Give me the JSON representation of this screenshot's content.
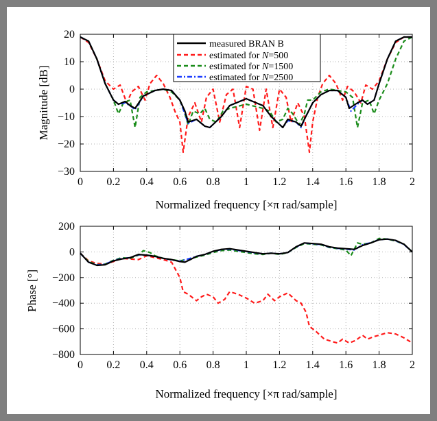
{
  "chart_data": [
    {
      "type": "line",
      "xlabel": "Normalized frequency  [×π rad/sample]",
      "ylabel": "Magnitude [dB]",
      "xlim": [
        0,
        2
      ],
      "ylim": [
        -30,
        20
      ],
      "xticks": [
        "0",
        "0.2",
        "0.4",
        "0.6",
        "0.8",
        "1",
        "1.2",
        "1.4",
        "1.6",
        "1.8",
        "2"
      ],
      "yticks": [
        "−30",
        "−20",
        "−10",
        "0",
        "10",
        "20"
      ],
      "grid": true,
      "legend_position": "top-center",
      "series": [
        {
          "name": "measured  BRAN B",
          "x": [
            0,
            0.05,
            0.1,
            0.15,
            0.2,
            0.23,
            0.27,
            0.3,
            0.33,
            0.38,
            0.45,
            0.5,
            0.55,
            0.6,
            0.63,
            0.65,
            0.7,
            0.75,
            0.78,
            0.85,
            0.9,
            1.0,
            1.1,
            1.15,
            1.22,
            1.25,
            1.3,
            1.33,
            1.35,
            1.4,
            1.45,
            1.5,
            1.55,
            1.6,
            1.62,
            1.67,
            1.7,
            1.73,
            1.77,
            1.8,
            1.85,
            1.9,
            1.95,
            2.0
          ],
          "y": [
            19,
            17.5,
            11,
            2,
            -4,
            -5.5,
            -4.5,
            -6,
            -7,
            -2.5,
            -0.5,
            0,
            -0.5,
            -4,
            -8,
            -12,
            -11,
            -13.5,
            -14,
            -10,
            -6,
            -3.5,
            -6,
            -10,
            -14,
            -11,
            -12,
            -13.5,
            -11,
            -5,
            -2,
            -0.5,
            -0.5,
            -3,
            -7,
            -5,
            -4,
            -5.5,
            -4,
            2,
            11,
            17.5,
            19,
            19
          ]
        },
        {
          "name": "estimated for N=500",
          "x": [
            0,
            0.05,
            0.1,
            0.15,
            0.2,
            0.24,
            0.28,
            0.31,
            0.35,
            0.39,
            0.42,
            0.46,
            0.5,
            0.54,
            0.57,
            0.6,
            0.62,
            0.65,
            0.69,
            0.73,
            0.76,
            0.8,
            0.84,
            0.88,
            0.92,
            0.96,
            1.0,
            1.04,
            1.08,
            1.12,
            1.16,
            1.2,
            1.24,
            1.27,
            1.31,
            1.35,
            1.38,
            1.4,
            1.43,
            1.46,
            1.5,
            1.54,
            1.58,
            1.61,
            1.65,
            1.69,
            1.72,
            1.76,
            1.8,
            1.85,
            1.9,
            1.95,
            2.0
          ],
          "y": [
            19,
            17,
            11,
            3,
            0,
            1.5,
            -5,
            -1,
            1,
            -4,
            2,
            5,
            2,
            -3,
            -8,
            -12,
            -23,
            -10,
            -5,
            -12,
            -3,
            0,
            -12,
            -2,
            0,
            -14,
            1,
            0,
            -15,
            0,
            -14,
            0,
            -3,
            -12,
            -5,
            -10,
            -23,
            -12,
            -3,
            2,
            5,
            2,
            -4,
            1,
            -1,
            -5,
            1.5,
            0,
            3,
            11,
            17,
            19,
            19
          ]
        },
        {
          "name": "estimated for N=1500",
          "x": [
            0,
            0.05,
            0.1,
            0.15,
            0.2,
            0.23,
            0.26,
            0.3,
            0.33,
            0.36,
            0.4,
            0.45,
            0.5,
            0.55,
            0.6,
            0.63,
            0.65,
            0.68,
            0.72,
            0.75,
            0.78,
            0.82,
            0.86,
            0.9,
            1.0,
            1.1,
            1.14,
            1.18,
            1.22,
            1.25,
            1.28,
            1.32,
            1.35,
            1.37,
            1.4,
            1.45,
            1.5,
            1.55,
            1.6,
            1.64,
            1.67,
            1.7,
            1.74,
            1.77,
            1.8,
            1.85,
            1.9,
            1.95,
            2.0
          ],
          "y": [
            19,
            17.5,
            11,
            2,
            -4,
            -9,
            -5,
            -4,
            -14,
            -3,
            -1,
            -0.5,
            0,
            -1,
            -4,
            -9,
            -13,
            -8,
            -9,
            -7,
            -11,
            -12,
            -8,
            -7,
            -5.5,
            -7,
            -8,
            -12,
            -11,
            -7,
            -9,
            -13,
            -9,
            -4,
            -4,
            -1,
            0,
            -0.5,
            -1,
            -3,
            -14,
            -5,
            -4,
            -9,
            -4,
            2,
            11,
            17.5,
            19
          ]
        },
        {
          "name": "estimated for N=2500",
          "x": [
            0,
            0.05,
            0.1,
            0.15,
            0.2,
            0.23,
            0.27,
            0.3,
            0.33,
            0.38,
            0.45,
            0.5,
            0.55,
            0.6,
            0.63,
            0.65,
            0.7,
            0.75,
            0.78,
            0.85,
            0.9,
            1.0,
            1.1,
            1.15,
            1.22,
            1.25,
            1.3,
            1.33,
            1.35,
            1.4,
            1.45,
            1.5,
            1.55,
            1.6,
            1.63,
            1.67,
            1.7,
            1.73,
            1.77,
            1.8,
            1.85,
            1.9,
            1.95,
            2.0
          ],
          "y": [
            19,
            17.5,
            11,
            2,
            -4,
            -5.5,
            -5,
            -6,
            -7.5,
            -2.5,
            -0.5,
            0,
            -0.5,
            -4,
            -9,
            -12.5,
            -11,
            -13.5,
            -14,
            -10,
            -6,
            -3.5,
            -6,
            -10,
            -14,
            -11.5,
            -12,
            -14,
            -11,
            -5,
            -2,
            -0.5,
            -0.5,
            -3,
            -8,
            -5.5,
            -4,
            -5.5,
            -4,
            2,
            11,
            17.5,
            19,
            19
          ]
        }
      ]
    },
    {
      "type": "line",
      "xlabel": "Normalized frequency  [×π rad/sample]",
      "ylabel": "Phase [°]",
      "xlim": [
        0,
        2
      ],
      "ylim": [
        -800,
        200
      ],
      "xticks": [
        "0",
        "0.2",
        "0.4",
        "0.6",
        "0.8",
        "1",
        "1.2",
        "1.4",
        "1.6",
        "1.8",
        "2"
      ],
      "yticks": [
        "−800",
        "−600",
        "−400",
        "−200",
        "0",
        "200"
      ],
      "grid": true,
      "series": [
        {
          "name": "measured  BRAN B",
          "x": [
            0,
            0.05,
            0.1,
            0.15,
            0.2,
            0.25,
            0.3,
            0.35,
            0.4,
            0.45,
            0.5,
            0.55,
            0.6,
            0.63,
            0.67,
            0.7,
            0.75,
            0.8,
            0.85,
            0.9,
            0.95,
            1.0,
            1.05,
            1.1,
            1.15,
            1.2,
            1.25,
            1.3,
            1.35,
            1.4,
            1.45,
            1.5,
            1.55,
            1.6,
            1.65,
            1.7,
            1.75,
            1.8,
            1.85,
            1.9,
            1.95,
            2.0
          ],
          "y": [
            -10,
            -80,
            -105,
            -100,
            -70,
            -55,
            -45,
            -20,
            -25,
            -35,
            -50,
            -60,
            -75,
            -80,
            -55,
            -35,
            -20,
            5,
            20,
            25,
            15,
            5,
            -5,
            -15,
            -10,
            -15,
            -5,
            40,
            70,
            65,
            60,
            40,
            30,
            25,
            20,
            50,
            70,
            95,
            100,
            90,
            60,
            0
          ]
        },
        {
          "name": "estimated for N=500",
          "x": [
            0,
            0.05,
            0.1,
            0.15,
            0.2,
            0.25,
            0.3,
            0.35,
            0.4,
            0.45,
            0.5,
            0.55,
            0.6,
            0.62,
            0.65,
            0.7,
            0.73,
            0.76,
            0.8,
            0.83,
            0.87,
            0.9,
            0.95,
            1.0,
            1.05,
            1.1,
            1.13,
            1.17,
            1.2,
            1.25,
            1.3,
            1.33,
            1.36,
            1.38,
            1.42,
            1.47,
            1.52,
            1.55,
            1.58,
            1.62,
            1.66,
            1.7,
            1.73,
            1.77,
            1.8,
            1.85,
            1.9,
            1.95,
            2.0
          ],
          "y": [
            -10,
            -70,
            -90,
            -95,
            -75,
            -50,
            -55,
            -60,
            -30,
            -45,
            -60,
            -80,
            -200,
            -310,
            -330,
            -380,
            -350,
            -330,
            -350,
            -400,
            -370,
            -310,
            -330,
            -360,
            -400,
            -380,
            -330,
            -380,
            -350,
            -320,
            -380,
            -400,
            -470,
            -580,
            -620,
            -680,
            -700,
            -710,
            -680,
            -710,
            -690,
            -650,
            -680,
            -660,
            -650,
            -630,
            -640,
            -670,
            -710
          ]
        },
        {
          "name": "estimated for N=1500",
          "x": [
            0,
            0.05,
            0.1,
            0.15,
            0.2,
            0.25,
            0.3,
            0.35,
            0.38,
            0.42,
            0.45,
            0.5,
            0.55,
            0.6,
            0.65,
            0.7,
            0.75,
            0.8,
            0.85,
            0.9,
            0.95,
            1.0,
            1.05,
            1.1,
            1.15,
            1.2,
            1.25,
            1.3,
            1.35,
            1.4,
            1.45,
            1.5,
            1.55,
            1.6,
            1.63,
            1.67,
            1.7,
            1.75,
            1.8,
            1.85,
            1.9,
            1.95,
            2.0
          ],
          "y": [
            -10,
            -75,
            -100,
            -95,
            -65,
            -45,
            -50,
            -25,
            10,
            -5,
            -30,
            -50,
            -60,
            -70,
            -55,
            -40,
            -25,
            -5,
            10,
            15,
            5,
            -5,
            -15,
            -20,
            -10,
            -20,
            -5,
            35,
            65,
            60,
            55,
            35,
            25,
            15,
            -30,
            70,
            60,
            70,
            105,
            100,
            85,
            60,
            0
          ]
        },
        {
          "name": "estimated for N=2500",
          "x": [
            0,
            0.05,
            0.1,
            0.15,
            0.2,
            0.25,
            0.3,
            0.35,
            0.4,
            0.45,
            0.5,
            0.55,
            0.6,
            0.65,
            0.7,
            0.75,
            0.8,
            0.85,
            0.9,
            0.95,
            1.0,
            1.05,
            1.1,
            1.15,
            1.2,
            1.25,
            1.3,
            1.35,
            1.4,
            1.45,
            1.5,
            1.55,
            1.6,
            1.65,
            1.7,
            1.75,
            1.8,
            1.85,
            1.9,
            1.95,
            2.0
          ],
          "y": [
            -10,
            -80,
            -102,
            -95,
            -68,
            -52,
            -45,
            -22,
            -25,
            -35,
            -50,
            -62,
            -72,
            -55,
            -35,
            -20,
            3,
            18,
            22,
            12,
            3,
            -8,
            -15,
            -10,
            -15,
            -5,
            38,
            70,
            63,
            58,
            38,
            28,
            22,
            15,
            55,
            72,
            95,
            100,
            88,
            58,
            0
          ]
        }
      ]
    }
  ],
  "colors": {
    "measured": "#000000",
    "n500": "#ff1a1a",
    "n1500": "#1a8c1a",
    "n2500": "#1a3cff",
    "frame": "#7f7f7f",
    "grid": "#b0b0b0"
  },
  "legend": [
    {
      "text": "measured  BRAN B",
      "pre": "",
      "n": ""
    },
    {
      "text": "",
      "pre": "estimated for ",
      "n": "N",
      "post": "=500"
    },
    {
      "text": "",
      "pre": "estimated for ",
      "n": "N",
      "post": "=1500"
    },
    {
      "text": "",
      "pre": "estimated for ",
      "n": "N",
      "post": "=2500"
    }
  ]
}
